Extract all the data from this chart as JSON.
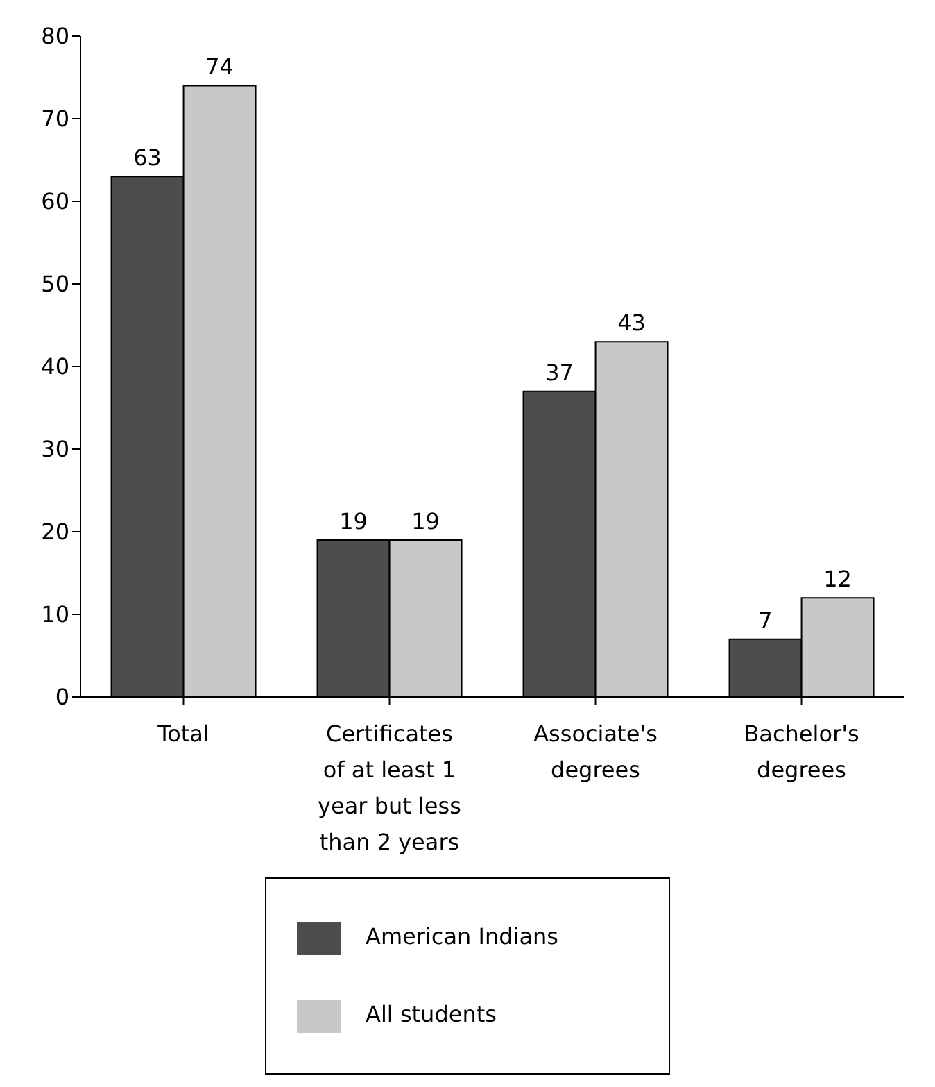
{
  "chart_data": {
    "type": "bar",
    "categories": [
      "Total",
      "Certificates of at least 1 year but less than 2 years",
      "Associate's degrees",
      "Bachelor's degrees"
    ],
    "series": [
      {
        "name": "American Indians",
        "color": "#4d4d4d",
        "values": [
          63,
          19,
          37,
          7
        ]
      },
      {
        "name": "All students",
        "color": "#c8c8c8",
        "values": [
          74,
          19,
          43,
          12
        ]
      }
    ],
    "ylim": [
      0,
      80
    ],
    "yticks": [
      0,
      10,
      20,
      30,
      40,
      50,
      60,
      70,
      80
    ],
    "data_labels": true,
    "legend": "bottom",
    "grid": false
  }
}
